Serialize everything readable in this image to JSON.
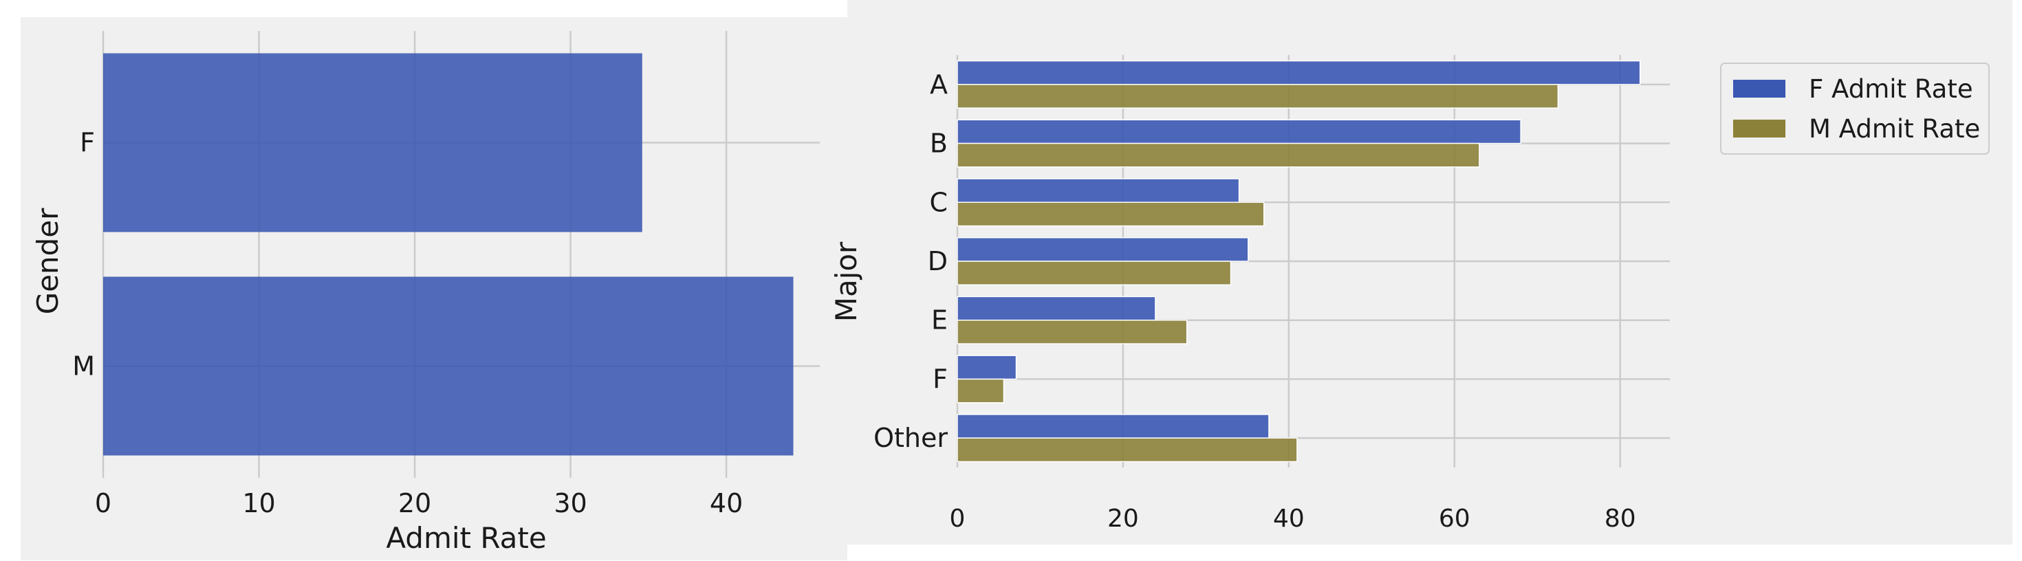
{
  "chart_data": [
    {
      "type": "bar",
      "orientation": "horizontal",
      "categories": [
        "F",
        "M"
      ],
      "values": [
        34.6,
        44.3
      ],
      "xlabel": "Admit Rate",
      "ylabel": "Gender",
      "xlim": [
        0,
        46
      ],
      "xticks": [
        0,
        10,
        20,
        30,
        40
      ],
      "grid": true,
      "colors": {
        "bar": "#3a57b2",
        "background": "#f0f0f0",
        "grid": "#cbcbcb"
      }
    },
    {
      "type": "bar",
      "orientation": "horizontal",
      "categories": [
        "A",
        "B",
        "C",
        "D",
        "E",
        "F",
        "Other"
      ],
      "series": [
        {
          "name": "F Admit Rate",
          "values": [
            82.4,
            68.0,
            34.0,
            35.1,
            23.9,
            7.1,
            37.6
          ],
          "color": "#3a57b2"
        },
        {
          "name": "M Admit Rate",
          "values": [
            72.5,
            63.0,
            37.0,
            33.0,
            27.7,
            5.6,
            41.0
          ],
          "color": "#8c8138"
        }
      ],
      "xlabel": "",
      "ylabel": "Major",
      "xlim": [
        0,
        86
      ],
      "xticks": [
        0,
        20,
        40,
        60,
        80
      ],
      "grid": true,
      "legend": "outside-top-right",
      "colors": {
        "background": "#f0f0f0",
        "grid": "#cbcbcb"
      }
    }
  ]
}
